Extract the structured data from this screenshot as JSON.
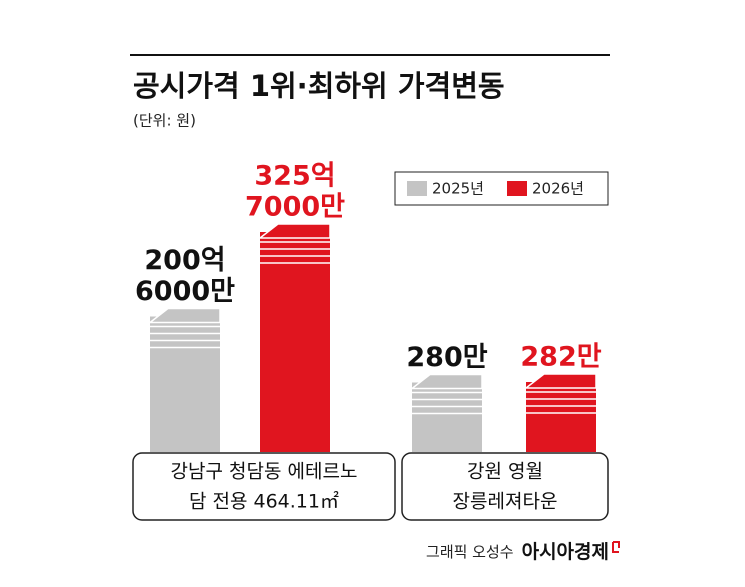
{
  "chart_data": {
    "type": "bar",
    "title": "공시가격 1위·최하위 가격변동",
    "subtitle": "(단위: 원)",
    "categories": [
      [
        "강남구 청담동 에테르노",
        "담 전용 464.11㎡"
      ],
      [
        "강원 영월",
        "장릉레져타운"
      ]
    ],
    "series": [
      {
        "name": "2025년",
        "color": "#c4c4c4",
        "label_color": "#111111",
        "values": [
          20060000000,
          2800000
        ],
        "value_labels": [
          [
            "200억",
            "6000만"
          ],
          [
            "280만"
          ]
        ]
      },
      {
        "name": "2026년",
        "color": "#e0151f",
        "label_color": "#e0151f",
        "values": [
          32570000000,
          2820000
        ],
        "value_labels": [
          [
            "325억",
            "7000만"
          ],
          [
            "282만"
          ]
        ]
      }
    ]
  },
  "footer": {
    "credit": "그래픽 오성수",
    "brand": "아시아경제"
  }
}
